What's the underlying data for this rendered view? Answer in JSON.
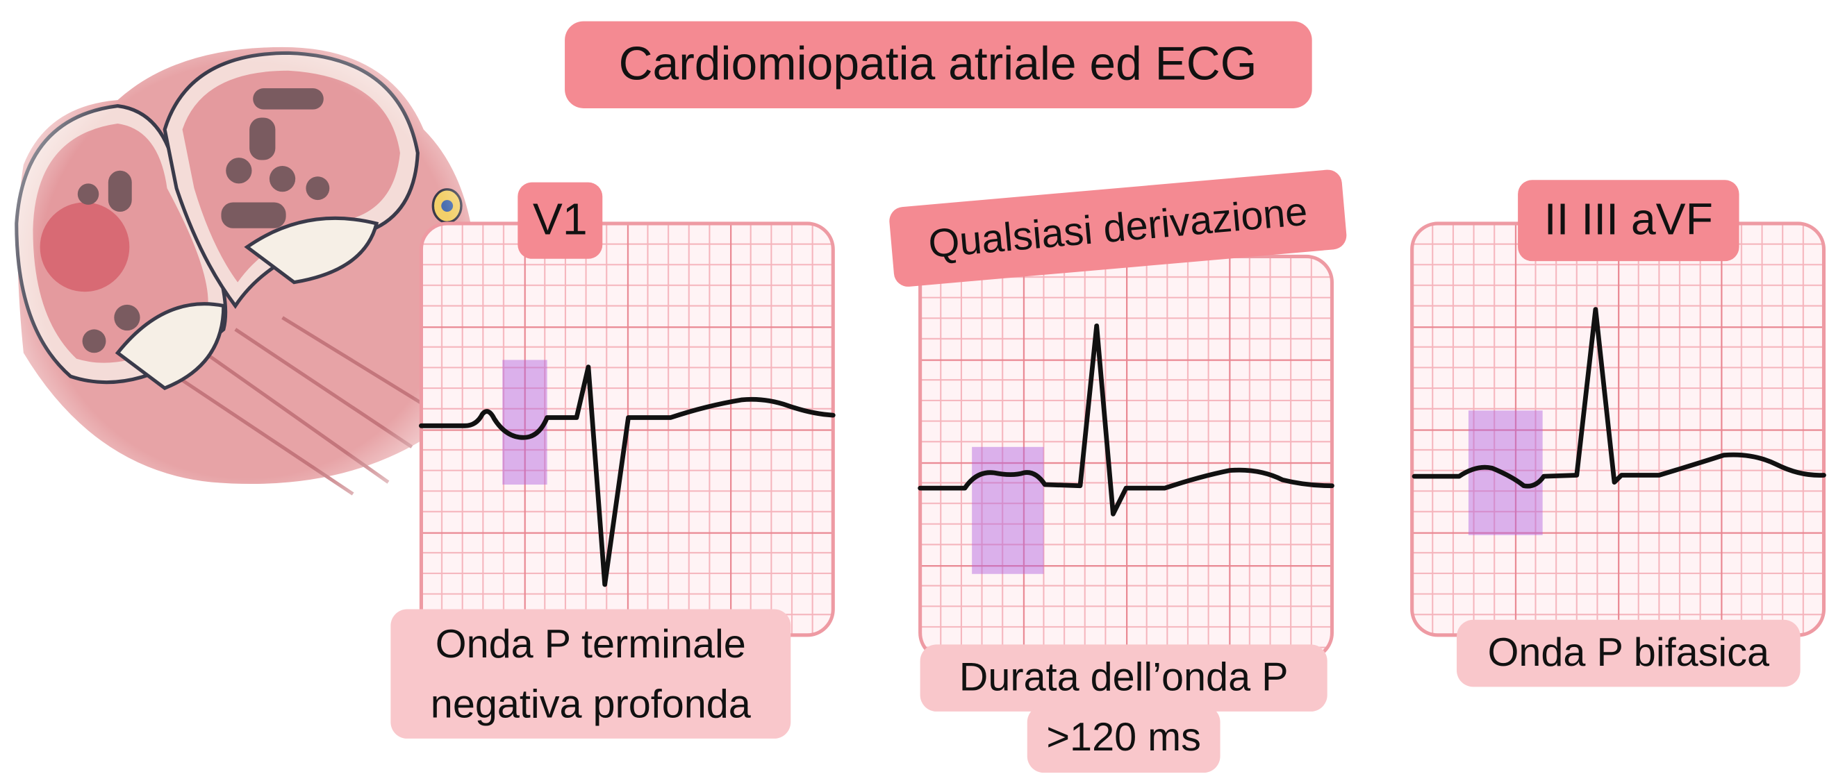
{
  "title": "Cardiomiopatia atriale ed ECG",
  "panels": [
    {
      "lead": "V1",
      "caption": [
        "Onda P terminale",
        "negativa profonda"
      ]
    },
    {
      "lead": "Qualsiasi derivazione",
      "caption": [
        "Durata dell’onda P",
        ">120 ms"
      ]
    },
    {
      "lead": "II III aVF",
      "caption": [
        "Onda P bifasica"
      ]
    }
  ]
}
